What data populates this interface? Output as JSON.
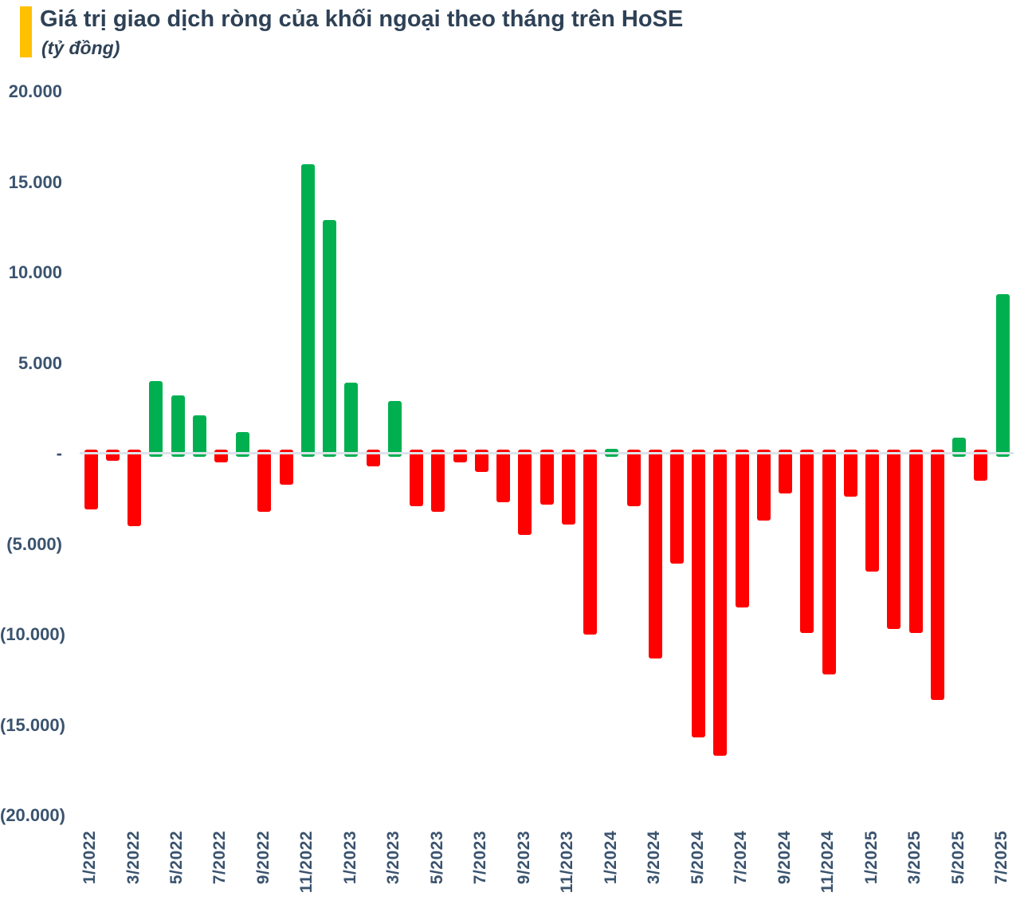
{
  "header": {
    "title": "Giá trị giao dịch ròng của khối ngoại theo tháng trên HoSE",
    "subtitle": "(tỷ đồng)",
    "accent_color": "#FFC000",
    "title_color": "#2E4156"
  },
  "chart_data": {
    "type": "bar",
    "title": "Giá trị giao dịch ròng của khối ngoại theo tháng trên HoSE",
    "unit_label": "(tỷ đồng)",
    "grid": false,
    "legend": false,
    "ylim": [
      -20000,
      20000
    ],
    "y_tick_step": 5000,
    "y_tick_labels": [
      "20.000",
      "15.000",
      "10.000",
      "5.000",
      "-",
      "(5.000)",
      "(10.000)",
      "(15.000)",
      "(20.000)"
    ],
    "x_labels_shown_every": 2,
    "positive_color": "#00B050",
    "negative_color": "#FF0000",
    "axis_line_color": "#DCE3EA",
    "text_color": "#3A536E",
    "series": [
      {
        "month": "1/2022",
        "value": -3100
      },
      {
        "month": "2/2022",
        "value": -400
      },
      {
        "month": "3/2022",
        "value": -4000
      },
      {
        "month": "4/2022",
        "value": 4000
      },
      {
        "month": "5/2022",
        "value": 3200
      },
      {
        "month": "6/2022",
        "value": 2100
      },
      {
        "month": "7/2022",
        "value": -500
      },
      {
        "month": "8/2022",
        "value": 1200
      },
      {
        "month": "9/2022",
        "value": -3200
      },
      {
        "month": "10/2022",
        "value": -1700
      },
      {
        "month": "11/2022",
        "value": 16000
      },
      {
        "month": "12/2022",
        "value": 12900
      },
      {
        "month": "1/2023",
        "value": 3900
      },
      {
        "month": "2/2023",
        "value": -700
      },
      {
        "month": "3/2023",
        "value": 2900
      },
      {
        "month": "4/2023",
        "value": -2900
      },
      {
        "month": "5/2023",
        "value": -3200
      },
      {
        "month": "6/2023",
        "value": -500
      },
      {
        "month": "7/2023",
        "value": -1000
      },
      {
        "month": "8/2023",
        "value": -2700
      },
      {
        "month": "9/2023",
        "value": -4500
      },
      {
        "month": "10/2023",
        "value": -2800
      },
      {
        "month": "11/2023",
        "value": -3900
      },
      {
        "month": "12/2023",
        "value": -10000
      },
      {
        "month": "1/2024",
        "value": 250
      },
      {
        "month": "2/2024",
        "value": -2900
      },
      {
        "month": "3/2024",
        "value": -11300
      },
      {
        "month": "4/2024",
        "value": -6100
      },
      {
        "month": "5/2024",
        "value": -15700
      },
      {
        "month": "6/2024",
        "value": -16700
      },
      {
        "month": "7/2024",
        "value": -8500
      },
      {
        "month": "8/2024",
        "value": -3700
      },
      {
        "month": "9/2024",
        "value": -2200
      },
      {
        "month": "10/2024",
        "value": -9900
      },
      {
        "month": "11/2024",
        "value": -12200
      },
      {
        "month": "12/2024",
        "value": -2400
      },
      {
        "month": "1/2025",
        "value": -6500
      },
      {
        "month": "2/2025",
        "value": -9700
      },
      {
        "month": "3/2025",
        "value": -9900
      },
      {
        "month": "4/2025",
        "value": -13600
      },
      {
        "month": "5/2025",
        "value": 900
      },
      {
        "month": "6/2025",
        "value": -1500
      },
      {
        "month": "7/2025",
        "value": 8800
      }
    ]
  }
}
